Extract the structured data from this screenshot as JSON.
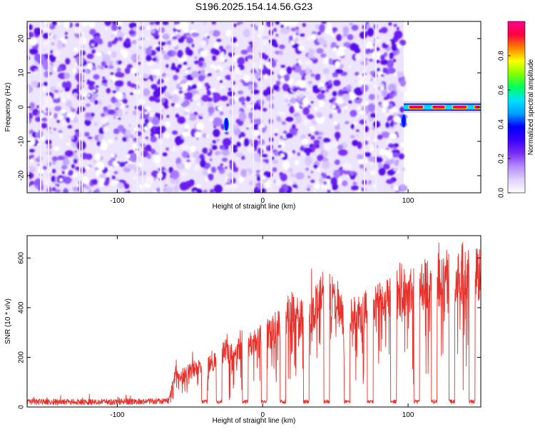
{
  "title": "S196.2025.154.14.56.G23",
  "chart_data": [
    {
      "type": "heatmap",
      "title": "S196.2025.154.14.56.G23",
      "xlabel": "Height of straight line (km)",
      "ylabel": "Frequency (Hz)",
      "xlim": [
        -162,
        150
      ],
      "ylim": [
        -25,
        25
      ],
      "xticks": [
        -100,
        0,
        100
      ],
      "yticks": [
        -20,
        -10,
        0,
        10,
        20
      ],
      "colorbar": {
        "label": "Normalized spectral amplitude",
        "range": [
          0,
          1
        ],
        "ticks": [
          "0.0",
          "0.2",
          "0.4",
          "0.6",
          "0.8"
        ],
        "colormap": [
          "#ffffff",
          "#e0d0ff",
          "#b48cff",
          "#7a2cf0",
          "#3a00ff",
          "#0000ff",
          "#00a0ff",
          "#00e0ff",
          "#00ff60",
          "#80ff00",
          "#ffff00",
          "#ff8000",
          "#ff0040",
          "#ff0090"
        ]
      },
      "noise_extent_x": [
        -162,
        97
      ],
      "signal": {
        "frequency_hz": 0,
        "x_range": [
          97,
          150
        ],
        "segments": [
          [
            100,
            111
          ],
          [
            116,
            126
          ],
          [
            130,
            141
          ],
          [
            145,
            150
          ]
        ]
      },
      "artifacts": [
        {
          "x": -25,
          "y": -5,
          "note": ""
        },
        {
          "x": 97,
          "y": -4,
          "note": ""
        }
      ]
    },
    {
      "type": "line",
      "xlabel": "Height of straight line (km)",
      "ylabel": "SNR (10 * v/v)",
      "xlim": [
        -162,
        150
      ],
      "ylim": [
        0,
        690
      ],
      "xticks": [
        -100,
        0,
        100
      ],
      "yticks": [
        0,
        200,
        400,
        600
      ],
      "color": "#e8302a",
      "x": [
        -162,
        -140,
        -120,
        -100,
        -80,
        -70,
        -65,
        -60,
        -55,
        -50,
        -45,
        -40,
        -35,
        -30,
        -25,
        -20,
        -15,
        -10,
        -5,
        0,
        5,
        10,
        15,
        20,
        25,
        30,
        35,
        40,
        45,
        50,
        55,
        60,
        65,
        70,
        75,
        80,
        85,
        90,
        95,
        100,
        105,
        110,
        115,
        120,
        125,
        130,
        135,
        140,
        145,
        150
      ],
      "values": [
        22,
        20,
        20,
        21,
        22,
        24,
        25,
        160,
        140,
        180,
        190,
        200,
        210,
        240,
        280,
        250,
        300,
        290,
        320,
        340,
        360,
        390,
        430,
        470,
        420,
        460,
        470,
        540,
        560,
        520,
        440,
        450,
        440,
        470,
        480,
        500,
        520,
        540,
        550,
        560,
        570,
        580,
        600,
        620,
        610,
        640,
        620,
        650,
        630,
        650
      ],
      "drops": [
        -40,
        -30,
        -12,
        1,
        14,
        30,
        44,
        58,
        74,
        90,
        106,
        118,
        130,
        144
      ],
      "drop_floor": 22
    }
  ]
}
